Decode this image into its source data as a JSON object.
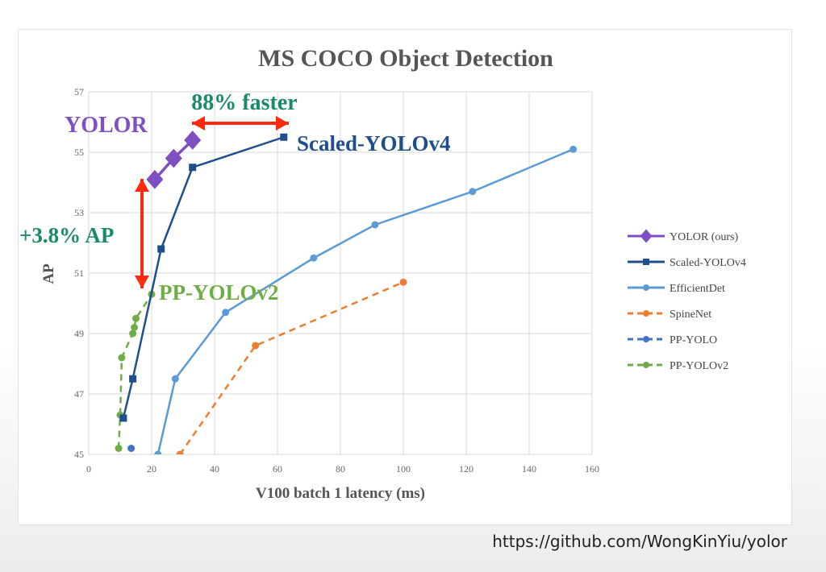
{
  "footer": {
    "url": "https://github.com/WongKinYiu/yolor"
  },
  "chart_data": {
    "type": "line",
    "title": "MS COCO Object Detection",
    "xlabel": "V100 batch 1 latency (ms)",
    "ylabel": "AP",
    "xlim": [
      0,
      160
    ],
    "ylim": [
      45,
      57
    ],
    "xticks": [
      0,
      20,
      40,
      60,
      80,
      100,
      120,
      140,
      160
    ],
    "yticks": [
      45,
      47,
      49,
      51,
      53,
      55,
      57
    ],
    "grid": true,
    "legend_position": "right",
    "series": [
      {
        "name": "YOLOR (ours)",
        "color": "#7e4fc3",
        "marker": "diamond",
        "dashed": false,
        "x": [
          21,
          27,
          33
        ],
        "y": [
          54.1,
          54.8,
          55.4
        ]
      },
      {
        "name": "Scaled-YOLOv4",
        "color": "#1f4e8c",
        "marker": "square",
        "dashed": false,
        "x": [
          11,
          14,
          23,
          33,
          62
        ],
        "y": [
          46.2,
          47.5,
          51.8,
          54.5,
          55.5
        ]
      },
      {
        "name": "EfficientDet",
        "color": "#5b9bd5",
        "marker": "circle",
        "dashed": false,
        "x": [
          22,
          27.5,
          43.5,
          71.5,
          91,
          122,
          154
        ],
        "y": [
          45,
          47.5,
          49.7,
          51.5,
          52.6,
          53.7,
          55.1
        ]
      },
      {
        "name": "SpineNet",
        "color": "#ed7d31",
        "marker": "circle",
        "dashed": true,
        "x": [
          29,
          53,
          100
        ],
        "y": [
          45,
          48.6,
          50.7
        ]
      },
      {
        "name": "PP-YOLO",
        "color": "#4472c4",
        "marker": "circle",
        "dashed": true,
        "x": [
          13.5
        ],
        "y": [
          45.2
        ]
      },
      {
        "name": "PP-YOLOv2",
        "color": "#70ad47",
        "marker": "circle",
        "dashed": true,
        "x": [
          9.5,
          10,
          10.5,
          14,
          14.5,
          15,
          20
        ],
        "y": [
          45.2,
          46.3,
          48.2,
          49,
          49.2,
          49.5,
          50.3
        ]
      }
    ],
    "annotations": [
      {
        "text": "88% faster",
        "color": "#1a8a6a"
      },
      {
        "text": "YOLOR",
        "color": "#7e4fc3"
      },
      {
        "text": "Scaled-YOLOv4",
        "color": "#1f4e8c"
      },
      {
        "text": "+3.8% AP",
        "color": "#1a8a6a"
      },
      {
        "text": "PP-YOLOv2",
        "color": "#70ad47"
      }
    ],
    "arrow_color": "#ff2a10"
  }
}
